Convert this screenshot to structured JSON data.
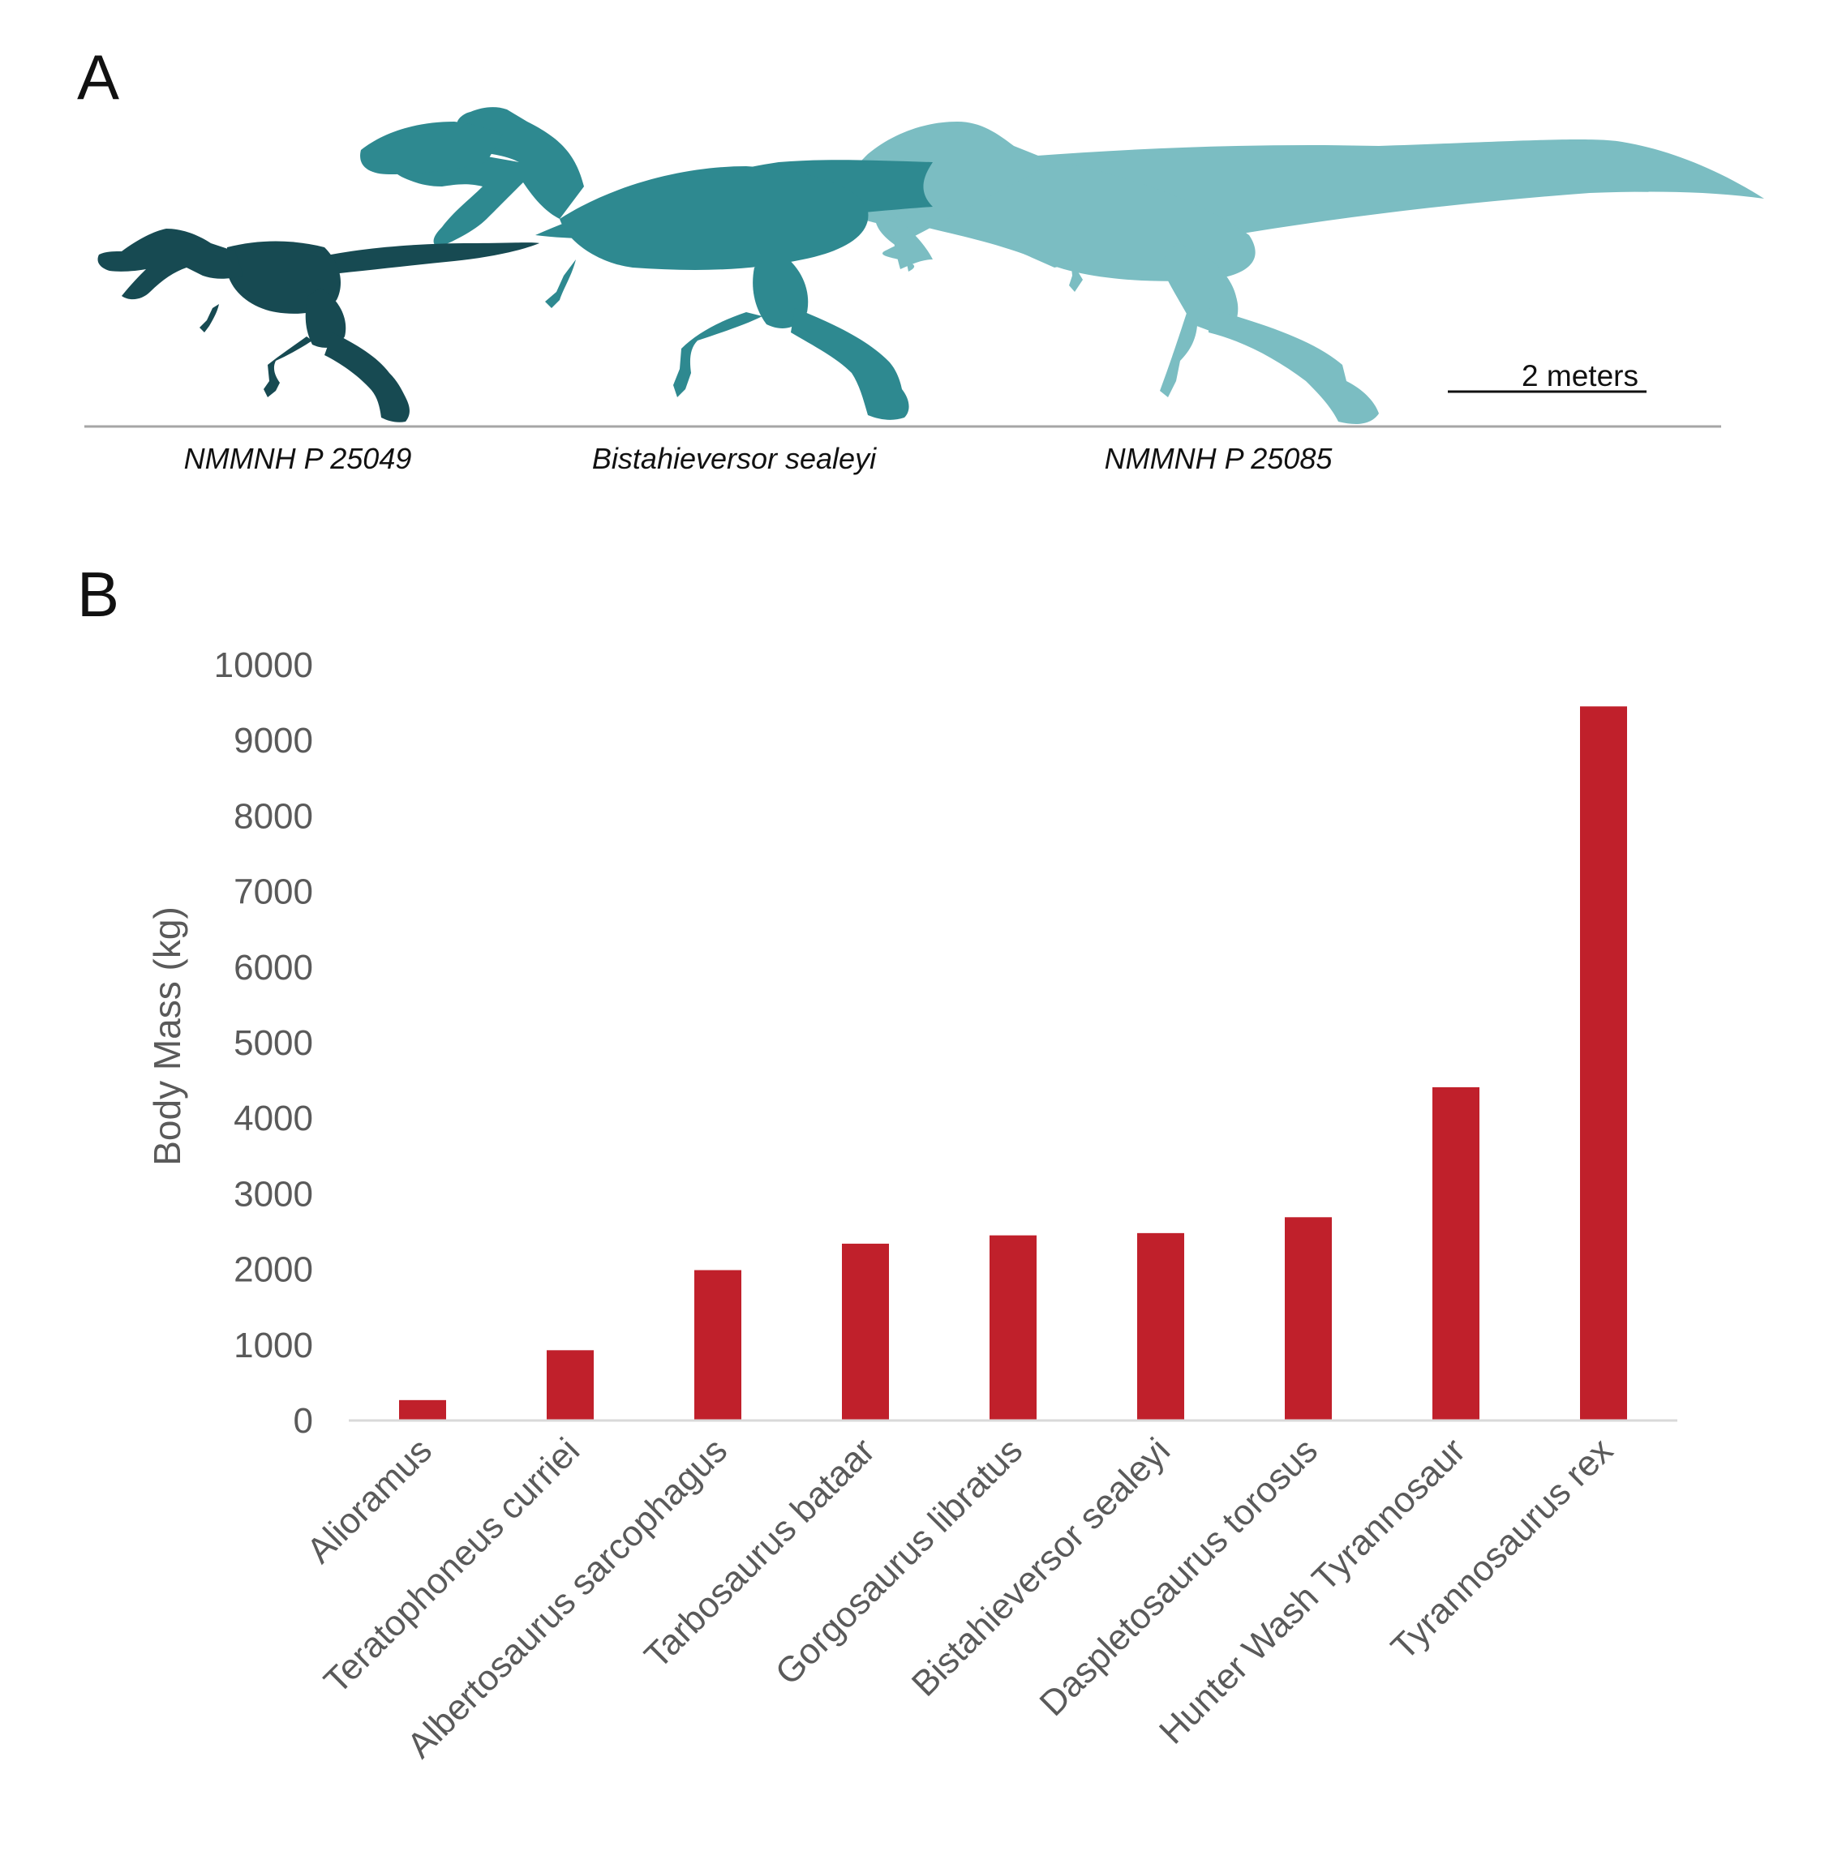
{
  "panel_a": {
    "label": "A",
    "specimens": [
      {
        "name": "NMMNH P 25049",
        "color": "#174a52"
      },
      {
        "name": "Bistahieversor sealeyi",
        "color": "#2e8990"
      },
      {
        "name": "NMMNH P 25085",
        "color": "#7bbdc2"
      }
    ],
    "scale_bar_label": "2 meters",
    "ground_color": "#a6a6a6"
  },
  "panel_b": {
    "label": "B"
  },
  "chart_data": {
    "type": "bar",
    "title": "",
    "xlabel": "",
    "ylabel": "Body Mass (kg)",
    "ylim": [
      0,
      10000
    ],
    "yticks": [
      0,
      1000,
      2000,
      3000,
      4000,
      5000,
      6000,
      7000,
      8000,
      9000,
      10000
    ],
    "grid": false,
    "bar_color": "#c0202b",
    "axis_color": "#d9d9d9",
    "categories": [
      "Alioramus",
      "Teratophoneus curriei",
      "Albertosaurus sarcophagus",
      "Tarbosaurus bataar",
      "Gorgosaurus libratus",
      "Bistahieversor sealeyi",
      "Daspletosaurus torosus",
      "Hunter Wash Tyrannosaur",
      "Tyrannosaurus rex"
    ],
    "values": [
      270,
      930,
      1990,
      2340,
      2450,
      2480,
      2690,
      4410,
      9450
    ]
  }
}
